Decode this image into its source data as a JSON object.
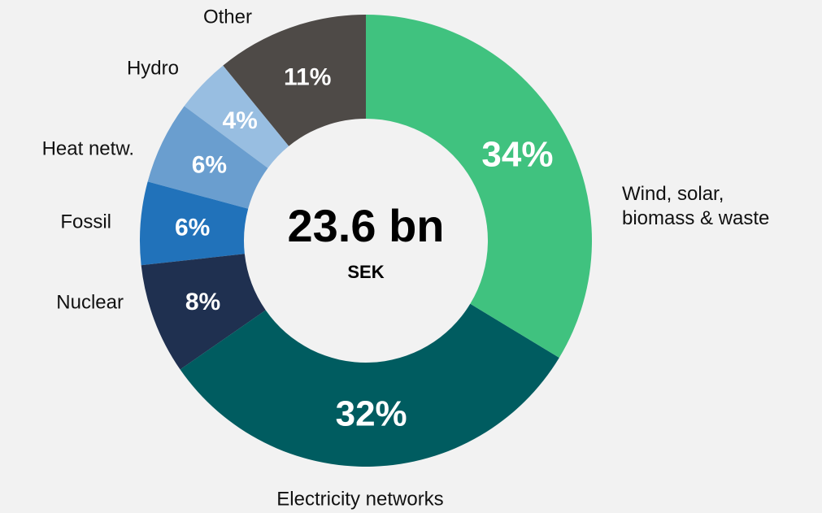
{
  "chart_data": {
    "type": "donut",
    "categories": [
      "Wind, solar, biomass & waste",
      "Electricity networks",
      "Nuclear",
      "Fossil",
      "Heat netw.",
      "Hydro",
      "Other"
    ],
    "values": [
      34,
      32,
      8,
      6,
      6,
      4,
      11
    ],
    "value_labels": [
      "34%",
      "32%",
      "8%",
      "6%",
      "6%",
      "4%",
      "11%"
    ],
    "colors": [
      "#40c27f",
      "#005c60",
      "#1f3050",
      "#2172ba",
      "#6a9ecf",
      "#98bee1",
      "#4e4a47"
    ],
    "center_text": "23.6 bn",
    "center_subtext": "SEK"
  }
}
